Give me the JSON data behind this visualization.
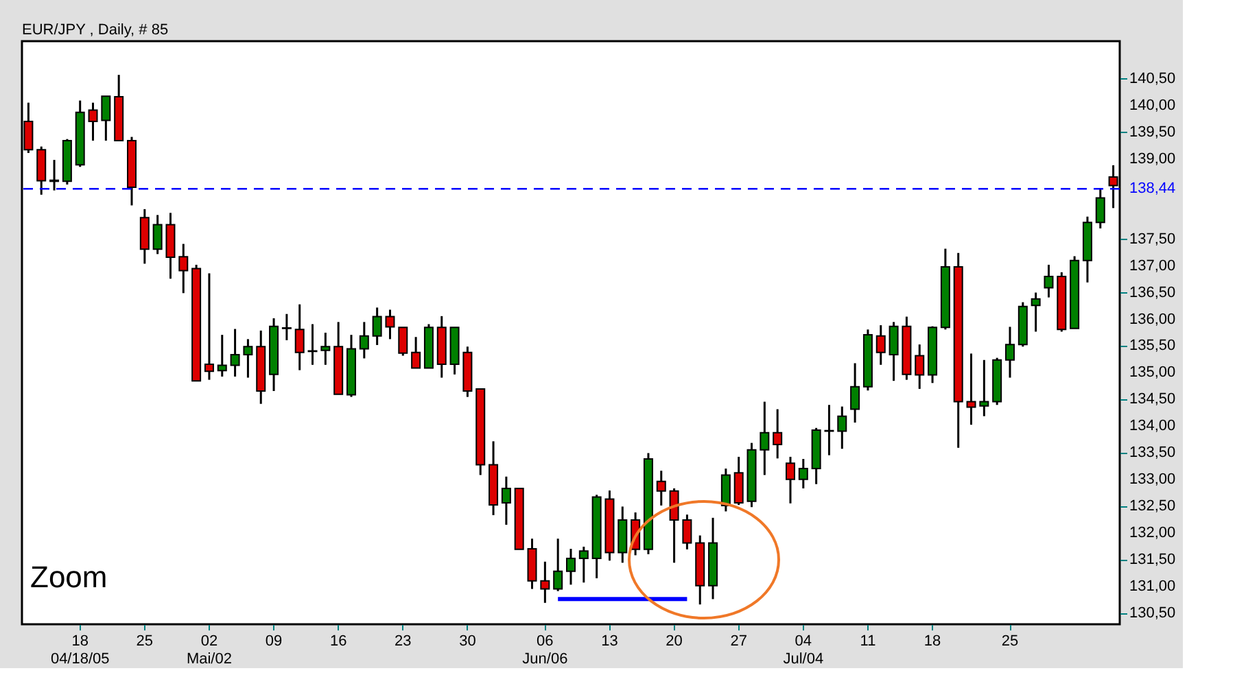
{
  "chart_data": {
    "type": "candlestick",
    "title": "EUR/JPY , Daily, # 85",
    "annotations": [
      "Zoom"
    ],
    "categories": [
      null,
      null,
      null,
      null,
      "18\n04/18/05",
      null,
      null,
      null,
      null,
      "25",
      null,
      null,
      null,
      null,
      "02\nMai/02",
      null,
      null,
      null,
      null,
      "09",
      null,
      null,
      null,
      null,
      "16",
      null,
      null,
      null,
      null,
      "23",
      null,
      null,
      null,
      null,
      "30",
      null,
      null,
      null,
      null,
      null,
      "06\nJun/06",
      null,
      null,
      null,
      null,
      "13",
      null,
      null,
      null,
      null,
      "20",
      null,
      null,
      null,
      null,
      "27",
      null,
      null,
      null,
      null,
      "04\nJul/04",
      null,
      null,
      null,
      null,
      "11",
      null,
      null,
      null,
      null,
      "18",
      null,
      null,
      null,
      null,
      null,
      "25",
      null,
      null,
      null,
      null,
      null,
      null,
      null,
      null
    ],
    "ohlc": [
      [
        139.7,
        140.05,
        139.11,
        139.17
      ],
      [
        139.17,
        139.23,
        138.33,
        138.59
      ],
      [
        138.6,
        138.98,
        138.41,
        138.58
      ],
      [
        138.58,
        139.37,
        138.52,
        139.34
      ],
      [
        138.89,
        140.09,
        138.85,
        139.87
      ],
      [
        139.91,
        140.05,
        139.34,
        139.7
      ],
      [
        139.72,
        140.17,
        139.34,
        140.17
      ],
      [
        140.16,
        140.57,
        139.34,
        139.34
      ],
      [
        139.34,
        139.41,
        138.13,
        138.47
      ],
      [
        137.9,
        138.06,
        137.04,
        137.31
      ],
      [
        137.31,
        137.95,
        137.22,
        137.77
      ],
      [
        137.77,
        137.99,
        136.76,
        137.16
      ],
      [
        137.17,
        137.41,
        136.49,
        136.91
      ],
      [
        136.95,
        137.02,
        134.85,
        134.85
      ],
      [
        135.16,
        136.86,
        134.87,
        135.03
      ],
      [
        135.04,
        135.71,
        134.93,
        135.14
      ],
      [
        135.14,
        135.82,
        134.93,
        135.34
      ],
      [
        135.34,
        135.63,
        134.91,
        135.49
      ],
      [
        135.49,
        135.79,
        134.42,
        134.66
      ],
      [
        134.97,
        136.02,
        134.66,
        135.87
      ],
      [
        135.83,
        136.1,
        135.61,
        135.84
      ],
      [
        135.81,
        136.28,
        135.05,
        135.38
      ],
      [
        135.4,
        135.91,
        135.15,
        135.41
      ],
      [
        135.42,
        135.75,
        135.15,
        135.49
      ],
      [
        135.49,
        135.95,
        134.6,
        134.6
      ],
      [
        134.59,
        135.71,
        134.55,
        135.45
      ],
      [
        135.45,
        135.95,
        135.27,
        135.69
      ],
      [
        135.69,
        136.22,
        135.52,
        136.05
      ],
      [
        136.05,
        136.18,
        135.63,
        135.86
      ],
      [
        135.85,
        135.85,
        135.32,
        135.37
      ],
      [
        135.38,
        135.67,
        135.09,
        135.09
      ],
      [
        135.09,
        135.91,
        135.09,
        135.85
      ],
      [
        135.85,
        136.06,
        134.91,
        135.16
      ],
      [
        135.16,
        135.85,
        134.97,
        135.85
      ],
      [
        135.38,
        135.49,
        134.55,
        134.66
      ],
      [
        134.7,
        134.7,
        133.09,
        133.28
      ],
      [
        133.28,
        133.72,
        132.34,
        132.53
      ],
      [
        132.57,
        133.06,
        132.16,
        132.84
      ],
      [
        132.84,
        132.84,
        131.7,
        131.7
      ],
      [
        131.71,
        131.9,
        130.96,
        131.11
      ],
      [
        131.11,
        131.47,
        130.7,
        130.96
      ],
      [
        130.96,
        131.9,
        130.92,
        131.29
      ],
      [
        131.29,
        131.71,
        131.04,
        131.53
      ],
      [
        131.53,
        131.75,
        131.08,
        131.67
      ],
      [
        131.53,
        132.72,
        131.16,
        132.68
      ],
      [
        132.64,
        132.8,
        131.49,
        131.64
      ],
      [
        131.64,
        132.5,
        131.45,
        132.25
      ],
      [
        132.25,
        132.39,
        131.59,
        131.7
      ],
      [
        131.7,
        133.5,
        131.61,
        133.39
      ],
      [
        132.97,
        133.17,
        132.52,
        132.79
      ],
      [
        132.79,
        132.84,
        131.45,
        132.25
      ],
      [
        132.25,
        132.35,
        131.7,
        131.82
      ],
      [
        131.82,
        131.96,
        130.67,
        131.02
      ],
      [
        131.02,
        132.29,
        130.77,
        131.82
      ],
      [
        132.52,
        133.21,
        132.41,
        133.09
      ],
      [
        133.13,
        133.43,
        132.53,
        132.57
      ],
      [
        132.6,
        133.69,
        132.49,
        133.56
      ],
      [
        133.56,
        134.46,
        133.09,
        133.88
      ],
      [
        133.88,
        134.32,
        133.4,
        133.66
      ],
      [
        133.31,
        133.43,
        132.56,
        133.01
      ],
      [
        133.01,
        133.39,
        132.84,
        133.21
      ],
      [
        133.21,
        133.97,
        132.92,
        133.93
      ],
      [
        133.91,
        134.4,
        133.46,
        133.92
      ],
      [
        133.91,
        134.37,
        133.58,
        134.19
      ],
      [
        134.32,
        135.18,
        134.07,
        134.74
      ],
      [
        134.74,
        135.81,
        134.67,
        135.71
      ],
      [
        135.69,
        135.89,
        135.15,
        135.38
      ],
      [
        135.34,
        135.95,
        134.85,
        135.87
      ],
      [
        135.87,
        136.05,
        134.87,
        134.97
      ],
      [
        135.32,
        135.53,
        134.7,
        134.96
      ],
      [
        134.96,
        135.87,
        134.81,
        135.85
      ],
      [
        135.85,
        137.32,
        135.81,
        136.98
      ],
      [
        136.98,
        137.24,
        133.6,
        134.46
      ],
      [
        134.46,
        135.36,
        134.03,
        134.36
      ],
      [
        134.38,
        135.24,
        134.19,
        134.46
      ],
      [
        134.46,
        135.28,
        134.4,
        135.24
      ],
      [
        135.24,
        135.86,
        134.91,
        135.53
      ],
      [
        135.53,
        136.32,
        135.49,
        136.24
      ],
      [
        136.26,
        136.5,
        135.77,
        136.38
      ],
      [
        136.59,
        137.02,
        136.41,
        136.8
      ],
      [
        136.8,
        136.88,
        135.77,
        135.81
      ],
      [
        135.83,
        137.18,
        135.83,
        137.1
      ],
      [
        137.1,
        137.92,
        136.69,
        137.81
      ],
      [
        137.81,
        138.45,
        137.7,
        138.27
      ],
      [
        138.66,
        138.88,
        138.08,
        138.5
      ]
    ],
    "colors": [
      "#dd0000",
      "#dd0000",
      "#dd0000",
      "#008000",
      "#008000",
      "#dd0000",
      "#008000",
      "#dd0000",
      "#dd0000",
      "#dd0000",
      "#008000",
      "#dd0000",
      "#dd0000",
      "#dd0000",
      "#dd0000",
      "#008000",
      "#008000",
      "#008000",
      "#dd0000",
      "#008000",
      "#008000",
      "#dd0000",
      "#008000",
      "#008000",
      "#dd0000",
      "#008000",
      "#008000",
      "#008000",
      "#dd0000",
      "#dd0000",
      "#dd0000",
      "#008000",
      "#dd0000",
      "#008000",
      "#dd0000",
      "#dd0000",
      "#dd0000",
      "#008000",
      "#dd0000",
      "#dd0000",
      "#dd0000",
      "#008000",
      "#008000",
      "#008000",
      "#008000",
      "#dd0000",
      "#008000",
      "#dd0000",
      "#008000",
      "#dd0000",
      "#dd0000",
      "#dd0000",
      "#dd0000",
      "#008000",
      "#008000",
      "#dd0000",
      "#008000",
      "#008000",
      "#dd0000",
      "#dd0000",
      "#008000",
      "#008000",
      "#008000",
      "#008000",
      "#008000",
      "#008000",
      "#dd0000",
      "#008000",
      "#dd0000",
      "#dd0000",
      "#008000",
      "#008000",
      "#dd0000",
      "#dd0000",
      "#008000",
      "#008000",
      "#008000",
      "#008000",
      "#008000",
      "#008000",
      "#dd0000",
      "#008000",
      "#008000",
      "#008000",
      "#dd0000"
    ],
    "series": [
      {
        "type": "line",
        "color": "#0000ff",
        "values": [
          null,
          null,
          null,
          null,
          null,
          null,
          null,
          null,
          null,
          null,
          null,
          null,
          null,
          null,
          null,
          null,
          null,
          null,
          null,
          null,
          null,
          null,
          null,
          null,
          null,
          null,
          null,
          null,
          null,
          null,
          null,
          null,
          null,
          null,
          null,
          null,
          null,
          null,
          null,
          null,
          null,
          130.77,
          130.77,
          130.77,
          130.77,
          130.77,
          130.77,
          130.77,
          130.77,
          130.77,
          130.77,
          130.77,
          null,
          null,
          null,
          null,
          null,
          null,
          null,
          null,
          null,
          null,
          null,
          null,
          null,
          null,
          null,
          null,
          null,
          null,
          null,
          null,
          null,
          null,
          null,
          null,
          null,
          null,
          null,
          null,
          null,
          null,
          null,
          null,
          null
        ]
      }
    ],
    "ylim": [
      130.3,
      141.2
    ],
    "yticks": [
      {
        "value": 130.5,
        "label": "130,50"
      },
      {
        "value": 131.0,
        "label": "131,00"
      },
      {
        "value": 131.5,
        "label": "131,50"
      },
      {
        "value": 132.0,
        "label": "132,00"
      },
      {
        "value": 132.5,
        "label": "132,50"
      },
      {
        "value": 133.0,
        "label": "133,00"
      },
      {
        "value": 133.5,
        "label": "133,50"
      },
      {
        "value": 134.0,
        "label": "134,00"
      },
      {
        "value": 134.5,
        "label": "134,50"
      },
      {
        "value": 135.0,
        "label": "135,00"
      },
      {
        "value": 135.5,
        "label": "135,50"
      },
      {
        "value": 136.0,
        "label": "136,00"
      },
      {
        "value": 136.5,
        "label": "136,50"
      },
      {
        "value": 137.0,
        "label": "137,00"
      },
      {
        "value": 137.5,
        "label": "137,50"
      },
      {
        "value": 139.0,
        "label": "139,00"
      },
      {
        "value": 139.5,
        "label": "139,50"
      },
      {
        "value": 140.0,
        "label": "140,00"
      },
      {
        "value": 140.5,
        "label": "140,50"
      }
    ],
    "ref_lines": [
      {
        "axis": "y",
        "value": 138.44,
        "label": "138,44",
        "color": "#0000ff",
        "line_style": "dashed"
      }
    ]
  }
}
